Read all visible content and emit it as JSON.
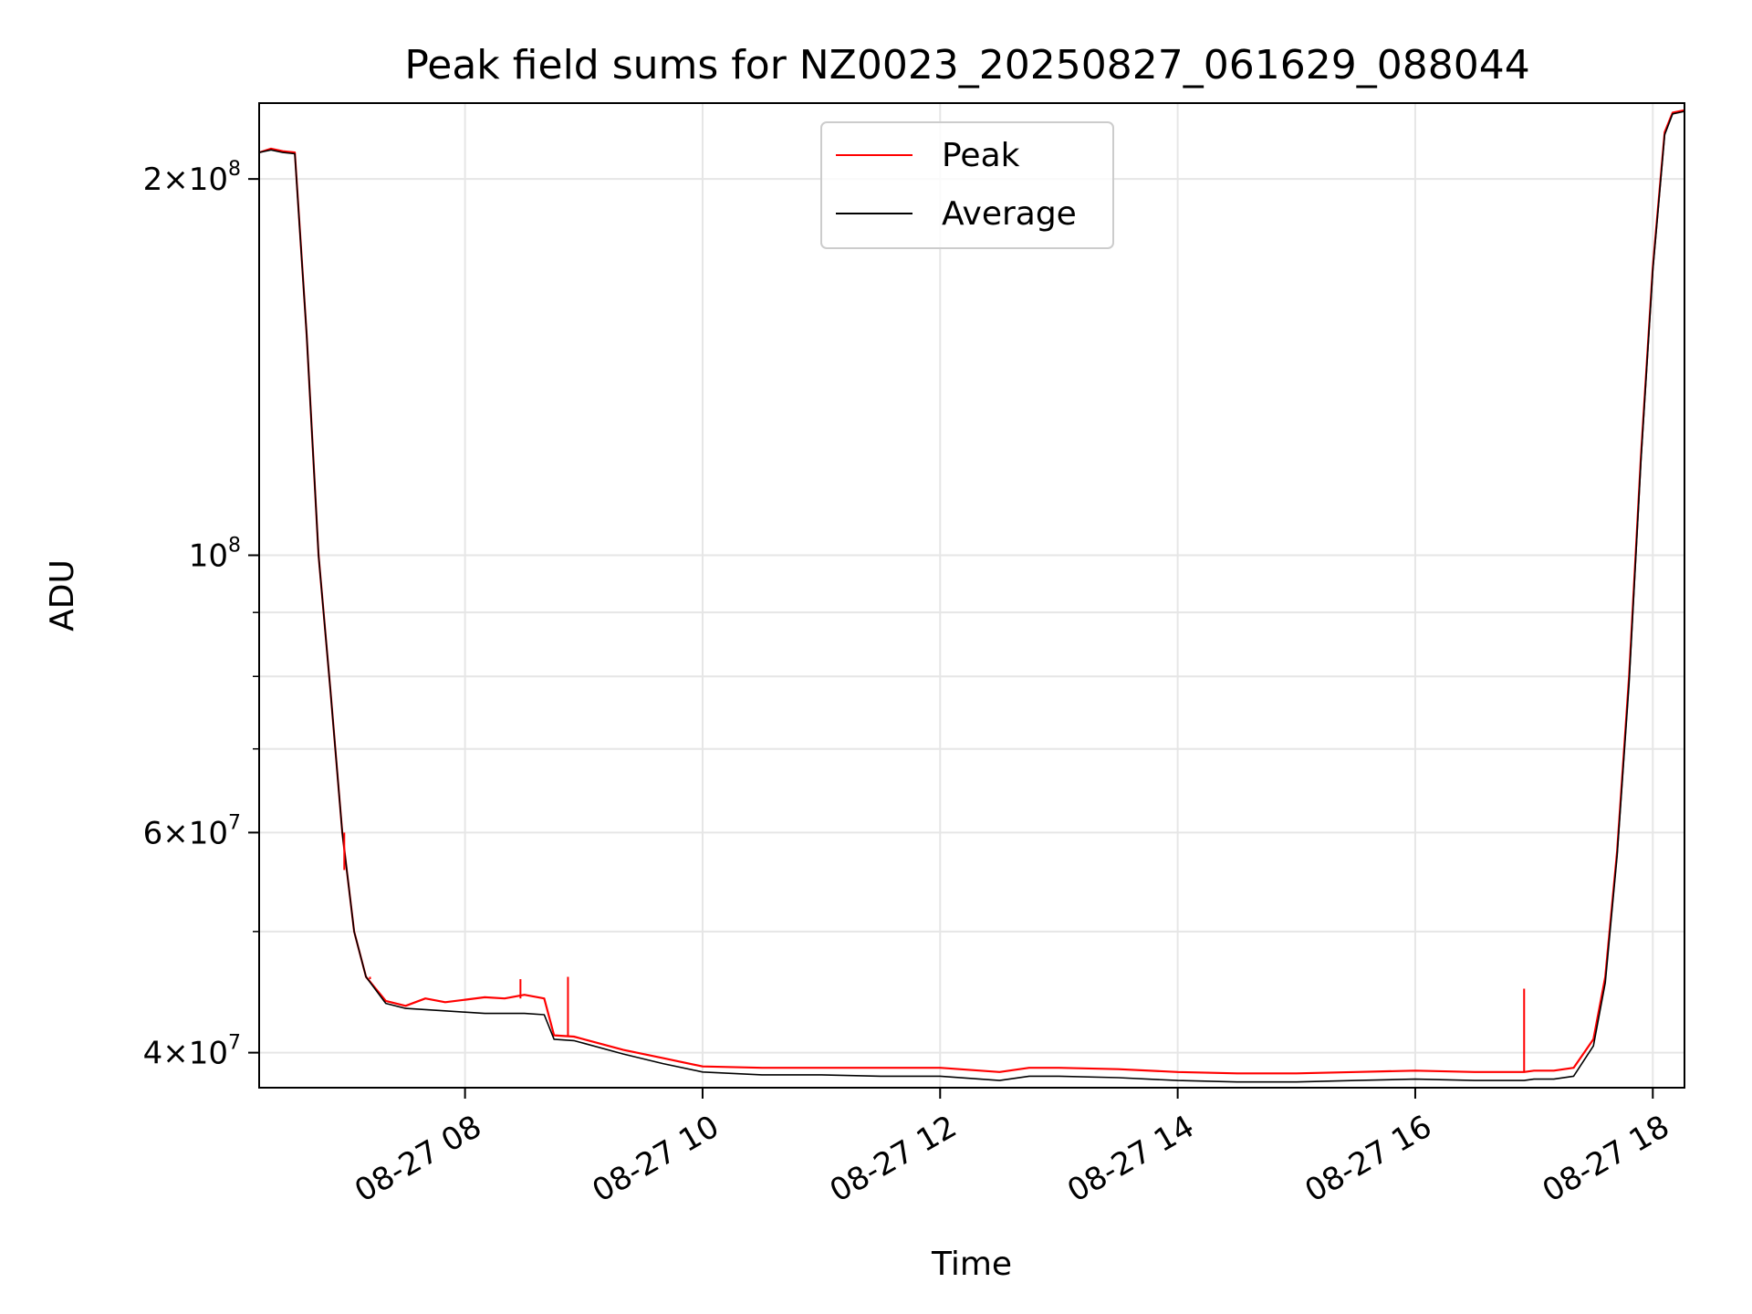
{
  "chart_data": {
    "type": "line",
    "title": "Peak field sums for NZ0023_20250827_061629_088044",
    "xlabel": "Time",
    "ylabel": "ADU",
    "yscale": "log",
    "ylim": [
      37500000,
      230000000
    ],
    "xlim": [
      "2025-08-27 06:16",
      "2025-08-27 18:16"
    ],
    "grid": true,
    "legend_position": "upper center",
    "x_ticks": [
      {
        "value": "2025-08-27 08:00",
        "label": "08-27 08"
      },
      {
        "value": "2025-08-27 10:00",
        "label": "08-27 10"
      },
      {
        "value": "2025-08-27 12:00",
        "label": "08-27 12"
      },
      {
        "value": "2025-08-27 14:00",
        "label": "08-27 14"
      },
      {
        "value": "2025-08-27 16:00",
        "label": "08-27 16"
      },
      {
        "value": "2025-08-27 18:00",
        "label": "08-27 18"
      }
    ],
    "y_ticks": [
      {
        "value": 40000000,
        "mantissa": "4",
        "exponent": "7"
      },
      {
        "value": 60000000,
        "mantissa": "6",
        "exponent": "7"
      },
      {
        "value": 100000000,
        "mantissa": "",
        "exponent": "8"
      },
      {
        "value": 200000000,
        "mantissa": "2",
        "exponent": "8"
      }
    ],
    "y_minor_ticks": [
      50000000,
      70000000,
      80000000,
      90000000
    ],
    "series": [
      {
        "name": "Peak",
        "color": "#ff0000",
        "points": [
          [
            "2025-08-27 06:16",
            210000000
          ],
          [
            "2025-08-27 06:22",
            211500000
          ],
          [
            "2025-08-27 06:28",
            210500000
          ],
          [
            "2025-08-27 06:34",
            210000000
          ],
          [
            "2025-08-27 06:40",
            150000000
          ],
          [
            "2025-08-27 06:46",
            100000000
          ],
          [
            "2025-08-27 06:52",
            78000000
          ],
          [
            "2025-08-27 06:58",
            60000000
          ],
          [
            "2025-08-27 07:04",
            50000000
          ],
          [
            "2025-08-27 07:10",
            46000000
          ],
          [
            "2025-08-27 07:20",
            44000000
          ],
          [
            "2025-08-27 07:30",
            43600000
          ],
          [
            "2025-08-27 07:40",
            44200000
          ],
          [
            "2025-08-27 07:50",
            43900000
          ],
          [
            "2025-08-27 08:00",
            44100000
          ],
          [
            "2025-08-27 08:10",
            44300000
          ],
          [
            "2025-08-27 08:20",
            44200000
          ],
          [
            "2025-08-27 08:30",
            44500000
          ],
          [
            "2025-08-27 08:40",
            44200000
          ],
          [
            "2025-08-27 08:45",
            41300000
          ],
          [
            "2025-08-27 08:55",
            41200000
          ],
          [
            "2025-08-27 09:00",
            41000000
          ],
          [
            "2025-08-27 09:20",
            40200000
          ],
          [
            "2025-08-27 09:40",
            39600000
          ],
          [
            "2025-08-27 10:00",
            39000000
          ],
          [
            "2025-08-27 10:30",
            38900000
          ],
          [
            "2025-08-27 11:00",
            38900000
          ],
          [
            "2025-08-27 11:30",
            38900000
          ],
          [
            "2025-08-27 12:00",
            38900000
          ],
          [
            "2025-08-27 12:30",
            38600000
          ],
          [
            "2025-08-27 12:45",
            38900000
          ],
          [
            "2025-08-27 13:00",
            38900000
          ],
          [
            "2025-08-27 13:30",
            38800000
          ],
          [
            "2025-08-27 14:00",
            38600000
          ],
          [
            "2025-08-27 14:30",
            38500000
          ],
          [
            "2025-08-27 15:00",
            38500000
          ],
          [
            "2025-08-27 15:30",
            38600000
          ],
          [
            "2025-08-27 16:00",
            38700000
          ],
          [
            "2025-08-27 16:30",
            38600000
          ],
          [
            "2025-08-27 16:55",
            38600000
          ],
          [
            "2025-08-27 17:00",
            38700000
          ],
          [
            "2025-08-27 17:10",
            38700000
          ],
          [
            "2025-08-27 17:20",
            38900000
          ],
          [
            "2025-08-27 17:30",
            41000000
          ],
          [
            "2025-08-27 17:36",
            46000000
          ],
          [
            "2025-08-27 17:42",
            58000000
          ],
          [
            "2025-08-27 17:48",
            80000000
          ],
          [
            "2025-08-27 17:54",
            120000000
          ],
          [
            "2025-08-27 18:00",
            170000000
          ],
          [
            "2025-08-27 18:06",
            218000000
          ],
          [
            "2025-08-27 18:10",
            226000000
          ],
          [
            "2025-08-27 18:16",
            227000000
          ]
        ]
      },
      {
        "name": "Average",
        "color": "#000000",
        "points": [
          [
            "2025-08-27 06:16",
            210000000
          ],
          [
            "2025-08-27 06:22",
            211000000
          ],
          [
            "2025-08-27 06:28",
            210000000
          ],
          [
            "2025-08-27 06:34",
            209500000
          ],
          [
            "2025-08-27 06:40",
            150000000
          ],
          [
            "2025-08-27 06:46",
            100000000
          ],
          [
            "2025-08-27 06:52",
            78000000
          ],
          [
            "2025-08-27 06:58",
            60000000
          ],
          [
            "2025-08-27 07:04",
            50000000
          ],
          [
            "2025-08-27 07:10",
            46000000
          ],
          [
            "2025-08-27 07:20",
            43800000
          ],
          [
            "2025-08-27 07:30",
            43400000
          ],
          [
            "2025-08-27 07:40",
            43300000
          ],
          [
            "2025-08-27 07:50",
            43200000
          ],
          [
            "2025-08-27 08:00",
            43100000
          ],
          [
            "2025-08-27 08:10",
            43000000
          ],
          [
            "2025-08-27 08:20",
            43000000
          ],
          [
            "2025-08-27 08:30",
            43000000
          ],
          [
            "2025-08-27 08:40",
            42900000
          ],
          [
            "2025-08-27 08:45",
            41000000
          ],
          [
            "2025-08-27 08:55",
            40900000
          ],
          [
            "2025-08-27 09:00",
            40700000
          ],
          [
            "2025-08-27 09:20",
            39900000
          ],
          [
            "2025-08-27 09:40",
            39200000
          ],
          [
            "2025-08-27 10:00",
            38600000
          ],
          [
            "2025-08-27 10:30",
            38400000
          ],
          [
            "2025-08-27 11:00",
            38400000
          ],
          [
            "2025-08-27 11:30",
            38300000
          ],
          [
            "2025-08-27 12:00",
            38300000
          ],
          [
            "2025-08-27 12:30",
            38000000
          ],
          [
            "2025-08-27 12:45",
            38300000
          ],
          [
            "2025-08-27 13:00",
            38300000
          ],
          [
            "2025-08-27 13:30",
            38200000
          ],
          [
            "2025-08-27 14:00",
            38000000
          ],
          [
            "2025-08-27 14:30",
            37900000
          ],
          [
            "2025-08-27 15:00",
            37900000
          ],
          [
            "2025-08-27 15:30",
            38000000
          ],
          [
            "2025-08-27 16:00",
            38100000
          ],
          [
            "2025-08-27 16:30",
            38000000
          ],
          [
            "2025-08-27 16:55",
            38000000
          ],
          [
            "2025-08-27 17:00",
            38100000
          ],
          [
            "2025-08-27 17:10",
            38100000
          ],
          [
            "2025-08-27 17:20",
            38300000
          ],
          [
            "2025-08-27 17:30",
            40500000
          ],
          [
            "2025-08-27 17:36",
            45500000
          ],
          [
            "2025-08-27 17:42",
            57500000
          ],
          [
            "2025-08-27 17:48",
            79000000
          ],
          [
            "2025-08-27 17:54",
            119000000
          ],
          [
            "2025-08-27 18:00",
            169000000
          ],
          [
            "2025-08-27 18:06",
            217000000
          ],
          [
            "2025-08-27 18:10",
            225500000
          ],
          [
            "2025-08-27 18:16",
            226500000
          ]
        ]
      }
    ],
    "spikes": [
      {
        "series": "Peak",
        "x": "2025-08-27 06:59",
        "y": 56000000
      },
      {
        "series": "Peak",
        "x": "2025-08-27 07:12",
        "y": 45800000
      },
      {
        "series": "Peak",
        "x": "2025-08-27 08:28",
        "y": 45800000
      },
      {
        "series": "Peak",
        "x": "2025-08-27 08:52",
        "y": 46000000
      },
      {
        "series": "Peak",
        "x": "2025-08-27 16:55",
        "y": 45000000
      }
    ]
  }
}
